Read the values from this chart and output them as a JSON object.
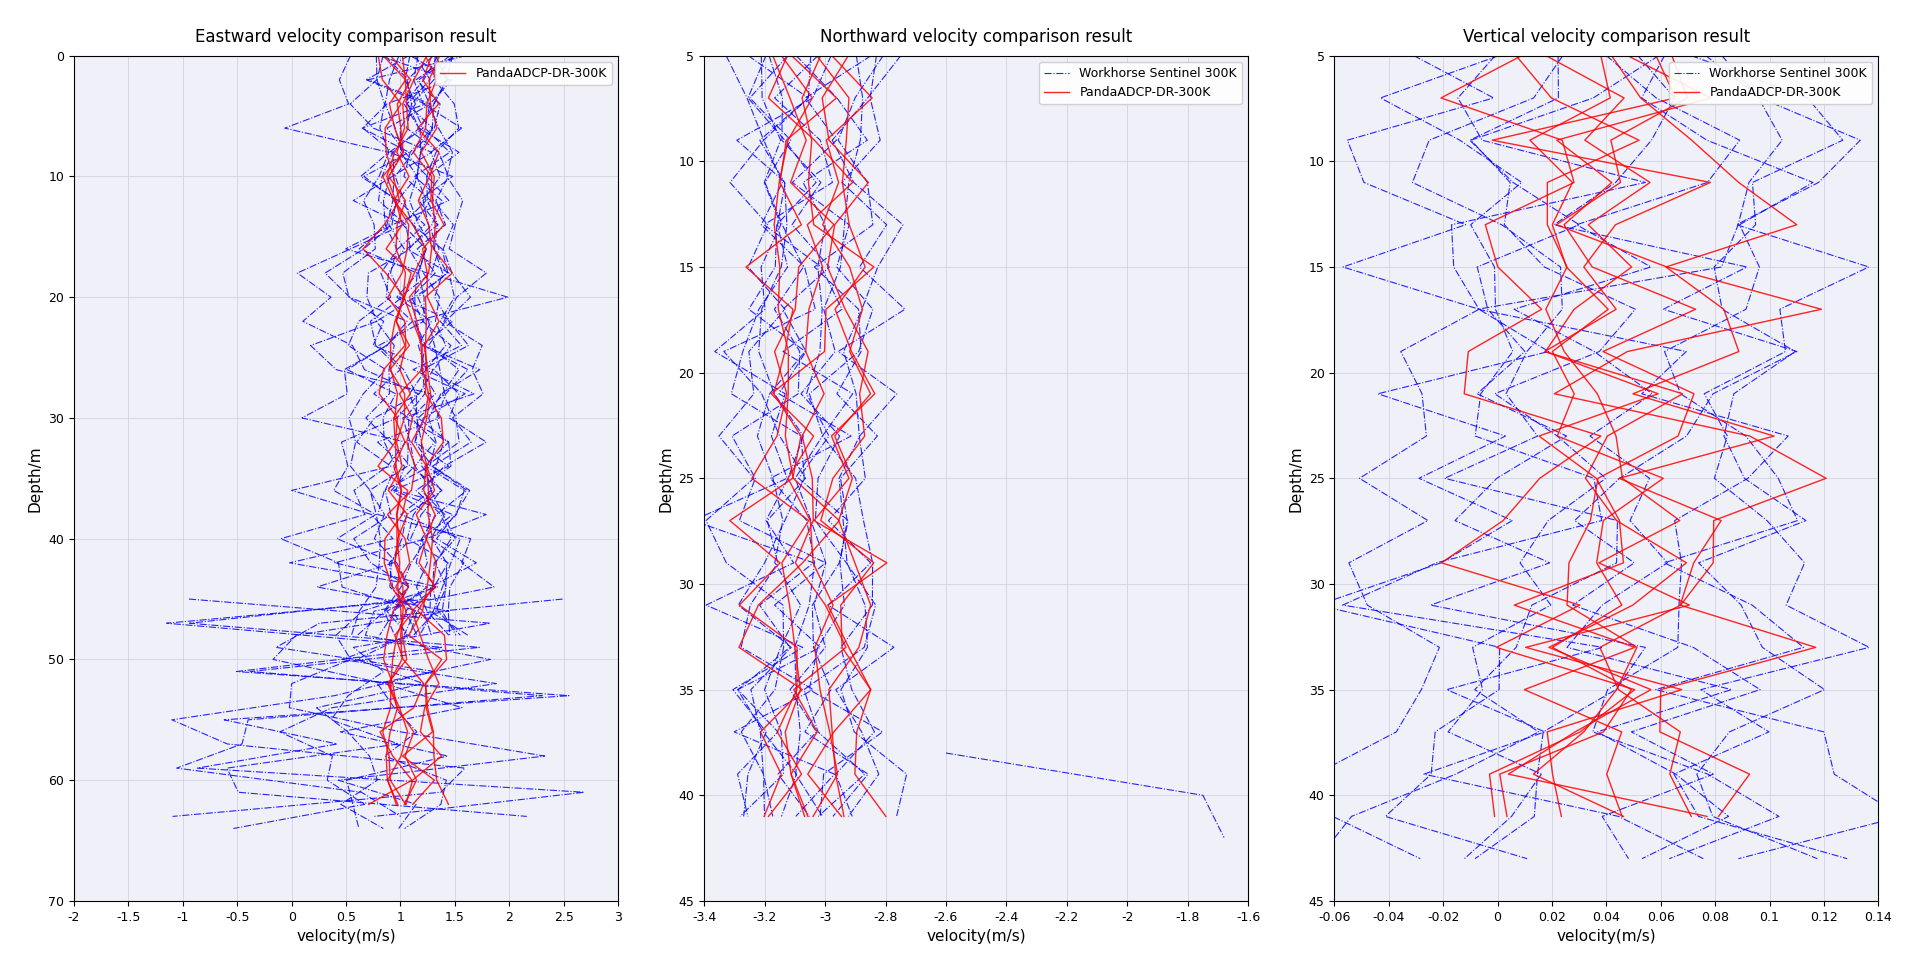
{
  "title1": "Eastward velocity comparison result",
  "title2": "Northward velocity comparison result",
  "title3": "Vertical velocity comparison result",
  "ylabel": "Depth/m",
  "xlabel": "velocity(m/s)",
  "legend_blue": "Workhorse Sentinel 300K",
  "legend_red": "PandaADCP-DR-300K",
  "panel1": {
    "xlim": [
      -2,
      3
    ],
    "ylim": [
      70,
      0
    ],
    "xticks": [
      -2,
      -1.5,
      -1,
      -0.5,
      0,
      0.5,
      1,
      1.5,
      2,
      2.5,
      3
    ],
    "yticks": [
      0,
      10,
      20,
      30,
      40,
      50,
      60,
      70
    ]
  },
  "panel2": {
    "xlim": [
      -3.4,
      -1.6
    ],
    "ylim": [
      45,
      5
    ],
    "xticks": [
      -3.4,
      -3.2,
      -3.0,
      -2.8,
      -2.6,
      -2.4,
      -2.2,
      -2.0,
      -1.8,
      -1.6
    ],
    "yticks": [
      5,
      10,
      15,
      20,
      25,
      30,
      35,
      40,
      45
    ]
  },
  "panel3": {
    "xlim": [
      -0.06,
      0.14
    ],
    "ylim": [
      45,
      5
    ],
    "xticks": [
      -0.06,
      -0.04,
      -0.02,
      0,
      0.02,
      0.04,
      0.06,
      0.08,
      0.1,
      0.12,
      0.14
    ],
    "yticks": [
      5,
      10,
      15,
      20,
      25,
      30,
      35,
      40,
      45
    ]
  },
  "blue_color": "#0000FF",
  "red_color": "#FF0000",
  "bg_color": "#F0F0F8",
  "grid_color": "#CCCCDD"
}
